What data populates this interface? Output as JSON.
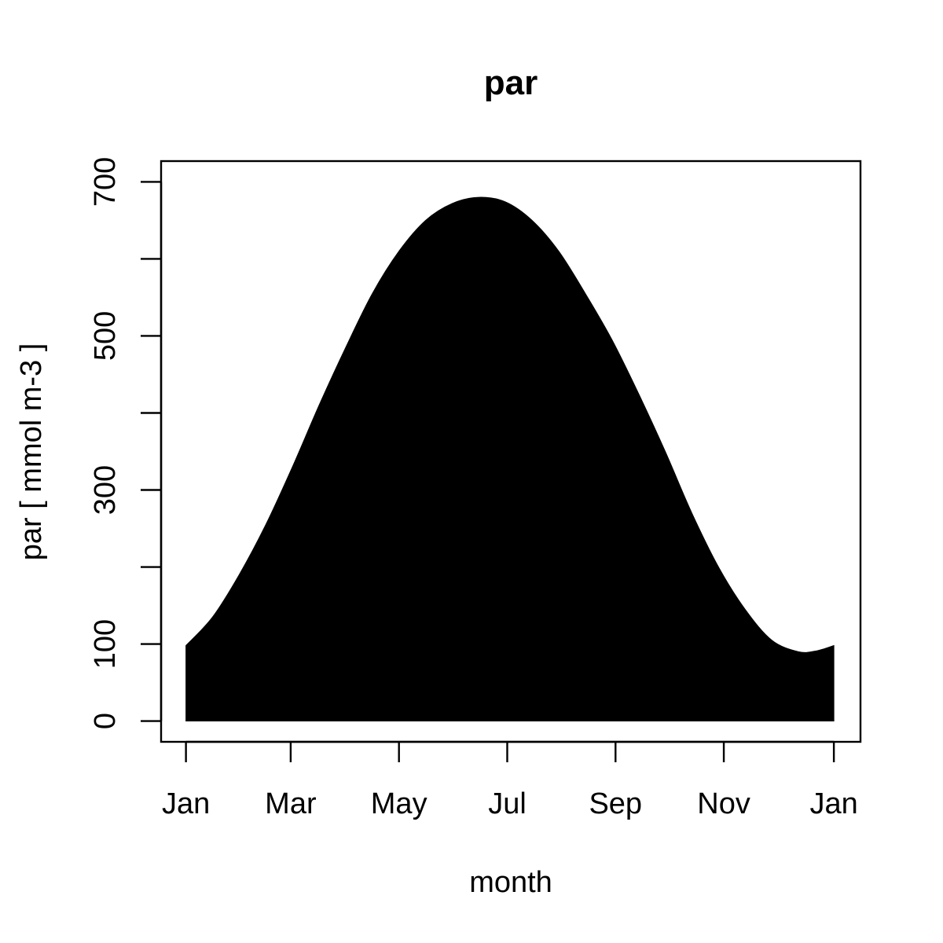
{
  "chart_data": {
    "type": "area",
    "title": "par",
    "xlabel": "month",
    "ylabel": "par [ mmol m-3 ]",
    "x_ticks": [
      "Jan",
      "Mar",
      "May",
      "Jul",
      "Sep",
      "Nov",
      "Jan"
    ],
    "x_tick_days": [
      0,
      59,
      120,
      181,
      242,
      303,
      365
    ],
    "y_ticks": [
      0,
      100,
      200,
      300,
      400,
      500,
      600,
      700
    ],
    "y_tick_labels": [
      "0",
      "100",
      "",
      "300",
      "",
      "500",
      "",
      "700"
    ],
    "xlim": [
      -14,
      380
    ],
    "ylim": [
      -27,
      727
    ],
    "grid": false,
    "fill_color": "#000000",
    "series": [
      {
        "x": [
          0,
          15,
          30,
          45,
          60,
          75,
          90,
          105,
          120,
          135,
          150,
          165,
          180,
          195,
          210,
          225,
          240,
          255,
          270,
          285,
          300,
          315,
          330,
          345,
          355,
          365
        ],
        "y": [
          98,
          135,
          190,
          255,
          330,
          410,
          485,
          555,
          610,
          650,
          672,
          680,
          674,
          650,
          610,
          555,
          495,
          425,
          350,
          270,
          200,
          145,
          105,
          90,
          91,
          98
        ]
      }
    ]
  }
}
